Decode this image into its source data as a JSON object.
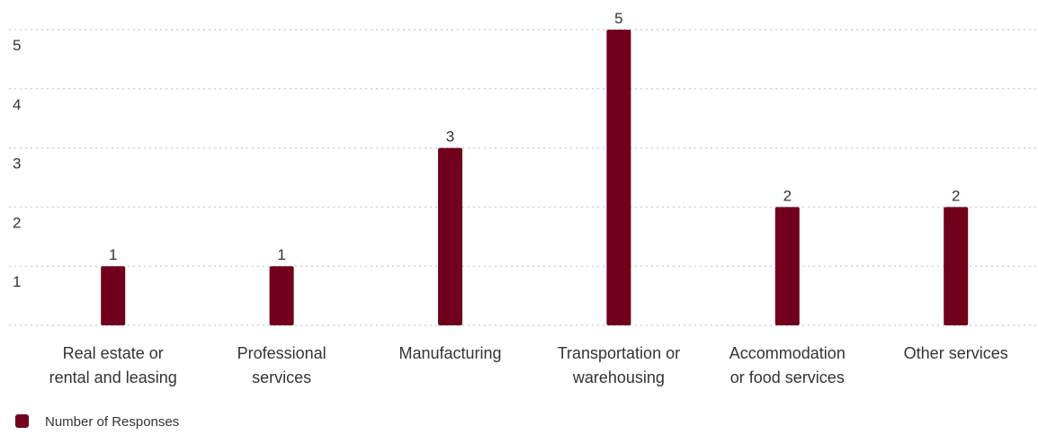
{
  "chart_data": {
    "type": "bar",
    "categories": [
      [
        "Real estate or",
        "rental and leasing"
      ],
      [
        "Professional",
        "services"
      ],
      [
        "Manufacturing"
      ],
      [
        "Transportation or",
        "warehousing"
      ],
      [
        "Accommodation",
        "or food services"
      ],
      [
        "Other services"
      ]
    ],
    "series": [
      {
        "name": "Number of Responses",
        "values": [
          1,
          1,
          3,
          5,
          2,
          2
        ],
        "color": "#70001b"
      }
    ],
    "yticks": [
      1,
      2,
      3,
      4,
      5
    ],
    "ylim": [
      0,
      5.3
    ],
    "grid": true,
    "data_labels": true,
    "legend_position": "bottom-left"
  }
}
